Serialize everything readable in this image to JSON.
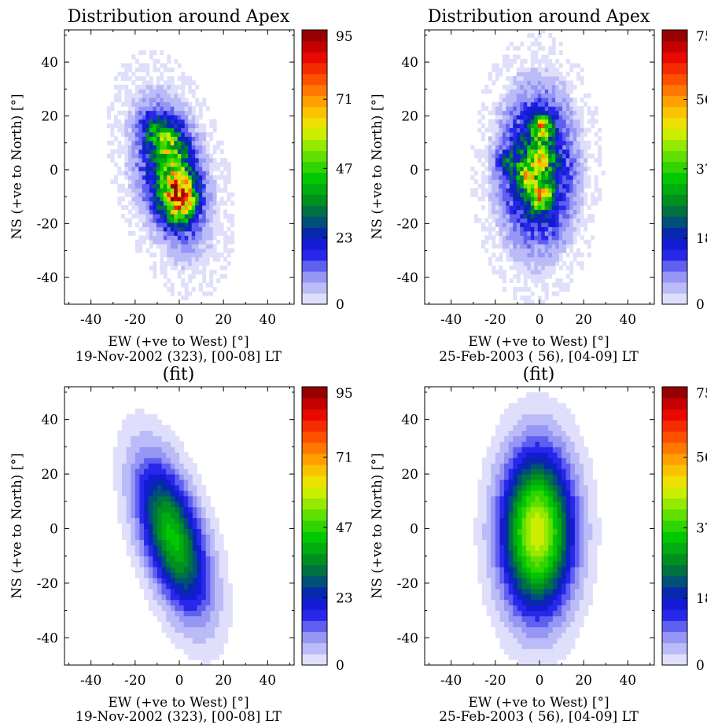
{
  "chart_data": [
    {
      "type": "heatmap",
      "title": "Distribution around Apex",
      "xlabel": "EW (+ve to West) [°]",
      "ylabel": "NS (+ve to North) [°]",
      "caption": "19-Nov-2002 (323), [00-08] LT",
      "xlim": [
        -52,
        52
      ],
      "ylim": [
        -50,
        52
      ],
      "xticks": [
        -40,
        -20,
        0,
        20,
        40
      ],
      "yticks": [
        -40,
        -20,
        0,
        20,
        40
      ],
      "colorbar": {
        "min": 0,
        "max": 95,
        "ticks": [
          0,
          23,
          47,
          71,
          95
        ]
      },
      "model": "observed",
      "blobs": [
        {
          "x": -4,
          "y": -2,
          "sx": 11,
          "sy": 18,
          "rho": -0.35,
          "amp": 30
        },
        {
          "x": 0,
          "y": -10,
          "sx": 5,
          "sy": 6,
          "rho": 0,
          "amp": 60
        },
        {
          "x": -6,
          "y": 11,
          "sx": 4,
          "sy": 5,
          "rho": 0,
          "amp": 25
        },
        {
          "x": -13,
          "y": 16,
          "sx": 3,
          "sy": 4,
          "rho": 0,
          "amp": 14
        },
        {
          "x": -2,
          "y": 4,
          "sx": 6,
          "sy": 8,
          "rho": 0,
          "amp": 15
        }
      ]
    },
    {
      "type": "heatmap",
      "title": "Distribution around Apex",
      "xlabel": "EW (+ve to West) [°]",
      "ylabel": "NS (+ve to North) [°]",
      "caption": "25-Feb-2003 ( 56), [04-09] LT",
      "xlim": [
        -52,
        52
      ],
      "ylim": [
        -50,
        52
      ],
      "xticks": [
        -40,
        -20,
        0,
        20,
        40
      ],
      "yticks": [
        -40,
        -20,
        0,
        20,
        40
      ],
      "colorbar": {
        "min": 0,
        "max": 75,
        "ticks": [
          0,
          18,
          37,
          56,
          75
        ]
      },
      "model": "observed",
      "blobs": [
        {
          "x": -1,
          "y": 0,
          "sx": 11,
          "sy": 19,
          "rho": 0,
          "amp": 30
        },
        {
          "x": 1,
          "y": 16,
          "sx": 3,
          "sy": 3,
          "rho": 0,
          "amp": 35
        },
        {
          "x": 1,
          "y": 5,
          "sx": 3,
          "sy": 3,
          "rho": 0,
          "amp": 30
        },
        {
          "x": 1,
          "y": -10,
          "sx": 3,
          "sy": 3,
          "rho": 0,
          "amp": 35
        },
        {
          "x": -5,
          "y": -2,
          "sx": 3,
          "sy": 3,
          "rho": 0,
          "amp": 22
        },
        {
          "x": -14,
          "y": 3,
          "sx": 4,
          "sy": 3,
          "rho": 0,
          "amp": 12
        }
      ]
    },
    {
      "type": "heatmap",
      "title": "(fit)",
      "xlabel": "EW (+ve to West) [°]",
      "ylabel": "NS (+ve to North) [°]",
      "caption": "19-Nov-2002 (323), [00-08] LT",
      "xlim": [
        -52,
        52
      ],
      "ylim": [
        -50,
        52
      ],
      "xticks": [
        -40,
        -20,
        0,
        20,
        40
      ],
      "yticks": [
        -40,
        -20,
        0,
        20,
        40
      ],
      "colorbar": {
        "min": 0,
        "max": 95,
        "ticks": [
          0,
          23,
          47,
          71,
          95
        ]
      },
      "model": "fit",
      "blobs": [
        {
          "x": -3,
          "y": -3,
          "sx": 11,
          "sy": 19,
          "rho": -0.55,
          "amp": 45
        }
      ]
    },
    {
      "type": "heatmap",
      "title": "(fit)",
      "xlabel": "EW (+ve to West) [°]",
      "ylabel": "NS (+ve to North) [°]",
      "caption": "25-Feb-2003 ( 56), [04-09] LT",
      "xlim": [
        -52,
        52
      ],
      "ylim": [
        -50,
        52
      ],
      "xticks": [
        -40,
        -20,
        0,
        20,
        40
      ],
      "yticks": [
        -40,
        -20,
        0,
        20,
        40
      ],
      "colorbar": {
        "min": 0,
        "max": 75,
        "ticks": [
          0,
          18,
          37,
          56,
          75
        ]
      },
      "model": "fit",
      "blobs": [
        {
          "x": -1,
          "y": -1,
          "sx": 11,
          "sy": 20,
          "rho": 0,
          "amp": 49
        }
      ]
    }
  ]
}
